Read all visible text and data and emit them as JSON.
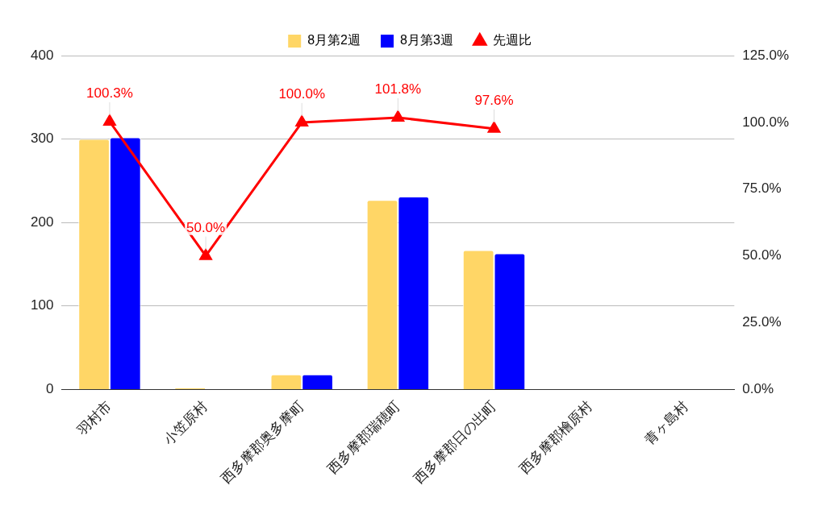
{
  "chart_data": {
    "type": "bar",
    "categories": [
      "羽村市",
      "小笠原村",
      "西多摩郡奥多摩町",
      "西多摩郡瑞穂町",
      "西多摩郡日の出町",
      "西多摩郡檜原村",
      "青ヶ島村"
    ],
    "series": [
      {
        "name": "8月第2週",
        "color": "#ffd666",
        "values": [
          300,
          2,
          18,
          227,
          167,
          0,
          0
        ]
      },
      {
        "name": "8月第3週",
        "color": "#0000ff",
        "values": [
          302,
          null,
          18,
          231,
          163,
          0,
          0
        ]
      },
      {
        "name": "先週比",
        "type": "line",
        "axis": "y2",
        "color": "#ff0000",
        "marker": "triangle",
        "values": [
          100.3,
          50.0,
          100.0,
          101.8,
          97.6,
          null,
          null
        ],
        "value_labels": [
          "100.3%",
          "50.0%",
          "100.0%",
          "101.8%",
          "97.6%",
          null,
          null
        ]
      }
    ],
    "ylim": [
      0,
      400
    ],
    "yticks": [
      0,
      100,
      200,
      300,
      400
    ],
    "y2lim": [
      0,
      125
    ],
    "y2ticks": [
      {
        "value": 0,
        "label": "0.0%"
      },
      {
        "value": 25,
        "label": "25.0%"
      },
      {
        "value": 50,
        "label": "50.0%"
      },
      {
        "value": 75,
        "label": "75.0%"
      },
      {
        "value": 100,
        "label": "100.0%"
      },
      {
        "value": 125,
        "label": "125.0%"
      }
    ],
    "grid": "y",
    "legend": "top"
  }
}
